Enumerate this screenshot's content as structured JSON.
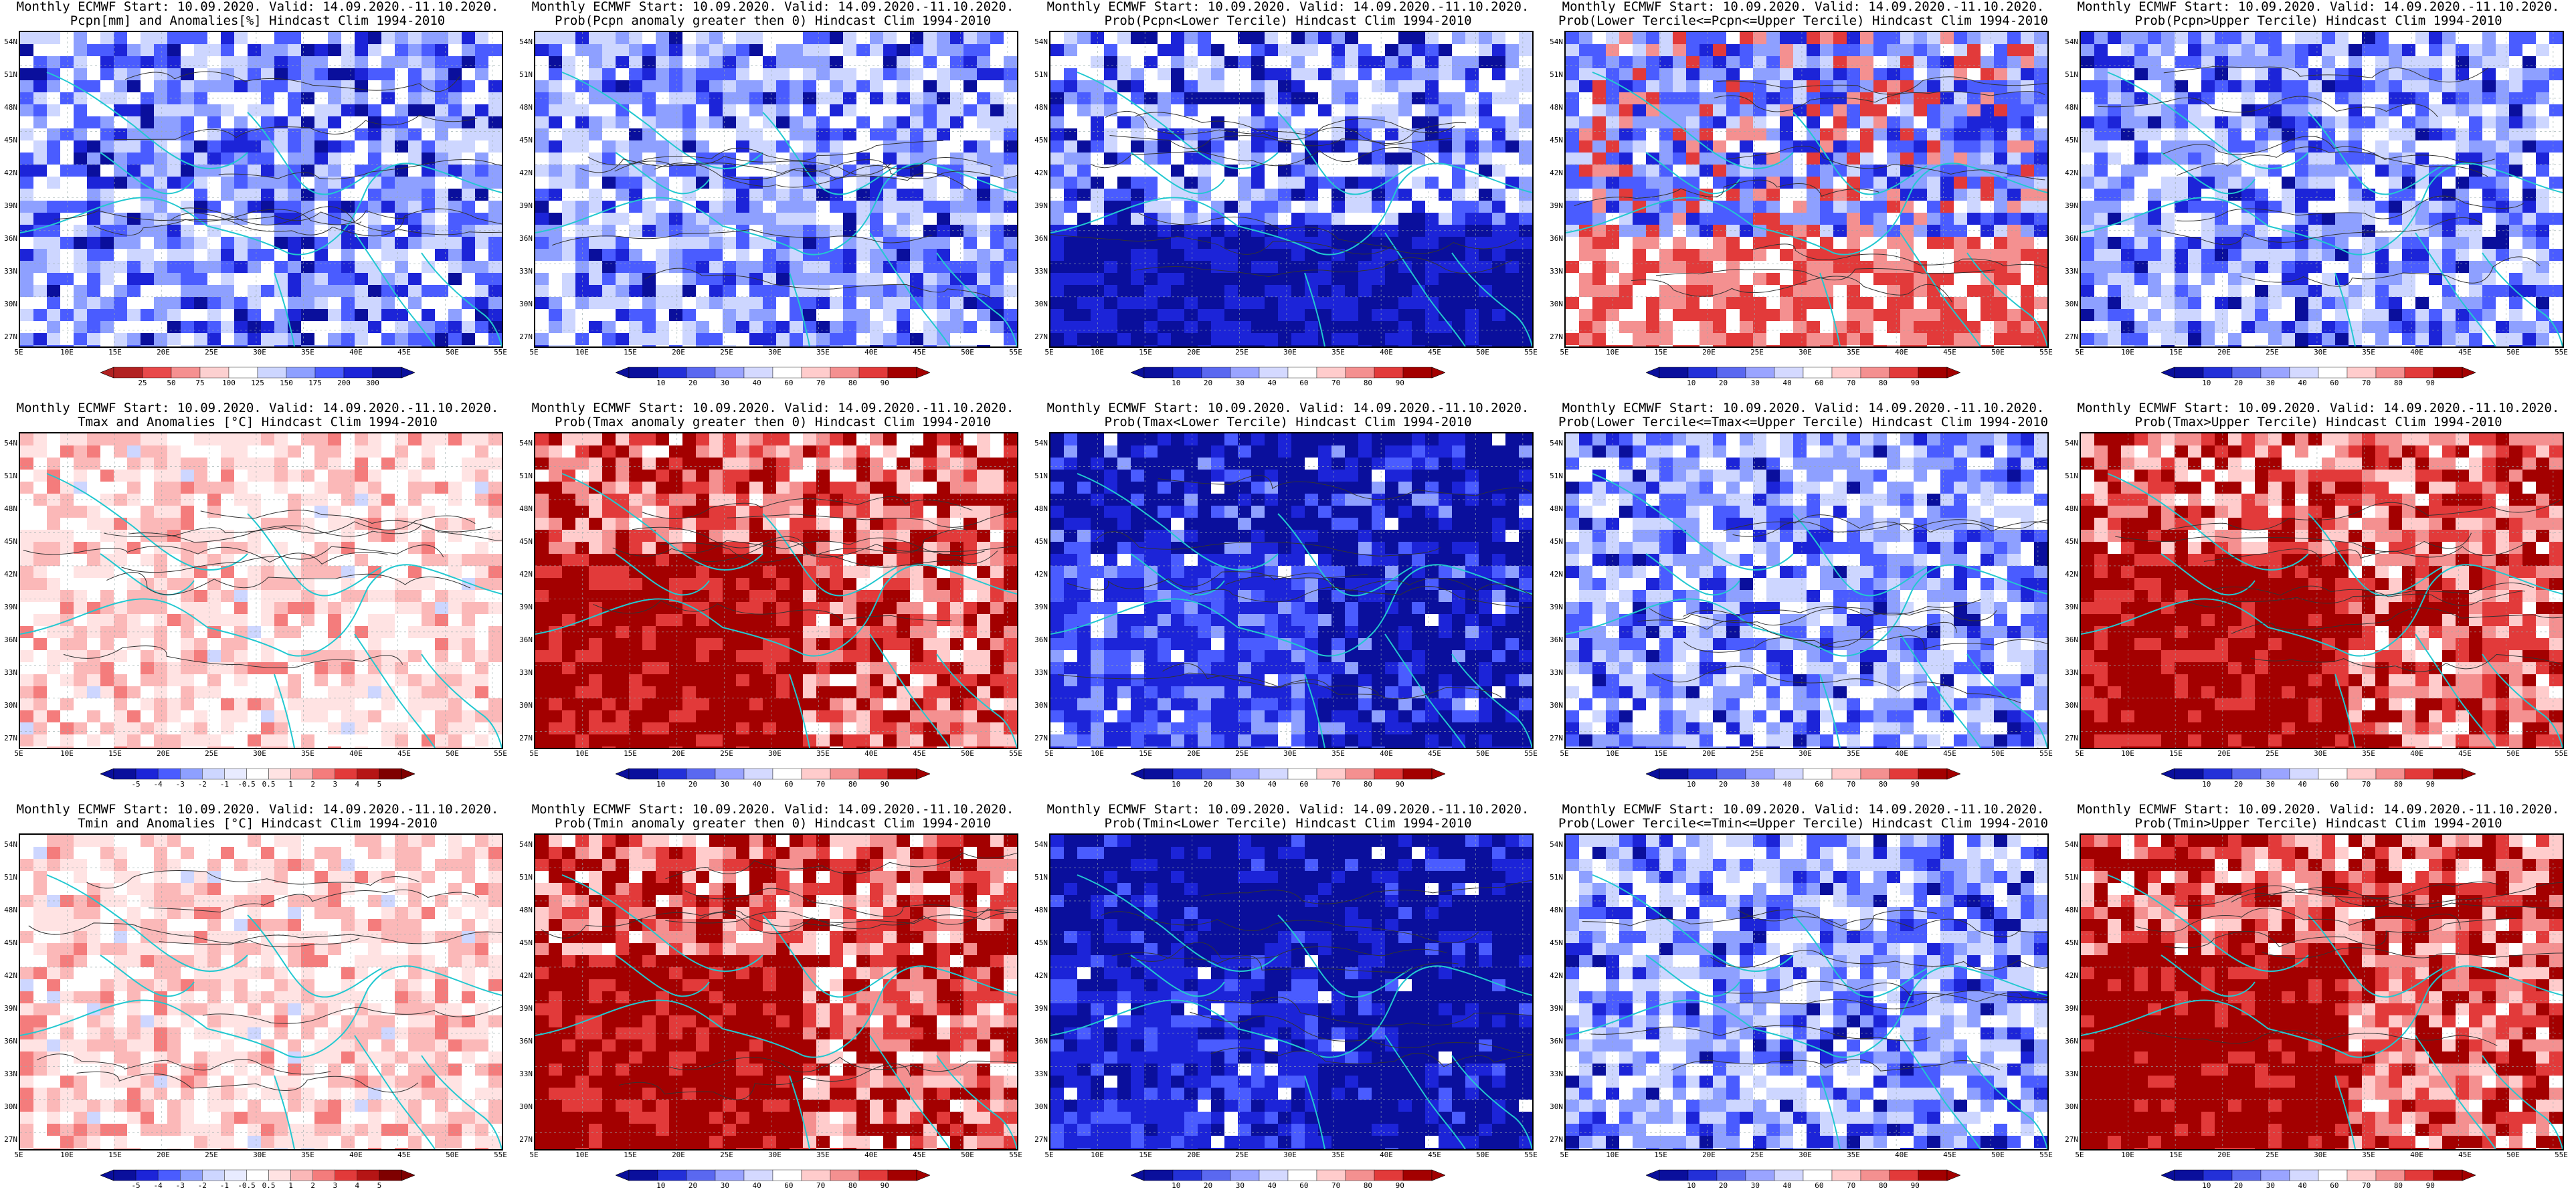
{
  "scale_pcpn": {
    "labels": [
      "25",
      "50",
      "75",
      "100",
      "125",
      "150",
      "175",
      "200",
      "300"
    ],
    "colors": [
      "#b22222",
      "#e8494a",
      "#f59090",
      "#fcd0d0",
      "#ffffff",
      "#cdd6ff",
      "#8ea0ff",
      "#4a5cff",
      "#1c24d8",
      "#0a0f9c"
    ]
  },
  "scale_prob": {
    "labels": [
      "10",
      "20",
      "30",
      "40",
      "60",
      "70",
      "80",
      "90"
    ],
    "colors": [
      "#0a0f9c",
      "#2330d8",
      "#5a68f0",
      "#9aa4ff",
      "#d4d9ff",
      "#ffffff",
      "#ffcccc",
      "#f49090",
      "#e23a3a",
      "#a30000"
    ]
  },
  "scale_anom": {
    "labels": [
      "-5",
      "-4",
      "-3",
      "-2",
      "-1",
      "-0.5",
      "0.5",
      "1",
      "2",
      "3",
      "4",
      "5"
    ],
    "colors": [
      "#0a0f9c",
      "#1c24d8",
      "#4a5cff",
      "#8ea0ff",
      "#cdd6ff",
      "#e8ebff",
      "#ffffff",
      "#ffe3e3",
      "#fbb8b8",
      "#f47c7c",
      "#e23a3a",
      "#b51515",
      "#7f0000"
    ]
  },
  "lat_ticks": [
    "54N",
    "51N",
    "48N",
    "45N",
    "42N",
    "39N",
    "36N",
    "33N",
    "30N",
    "27N"
  ],
  "lon_ticks": [
    "5E",
    "10E",
    "15E",
    "20E",
    "25E",
    "30E",
    "35E",
    "40E",
    "45E",
    "50E",
    "55E"
  ],
  "panels": [
    {
      "title1": "Monthly ECMWF Start: 10.09.2020. Valid: 14.09.2020.-11.10.2020.",
      "title2": "Pcpn[mm] and Anomalies[%] Hindcast Clim 1994-2010",
      "scale": "pcpn",
      "style": "blue-mix"
    },
    {
      "title1": "Monthly ECMWF Start: 10.09.2020. Valid: 14.09.2020.-11.10.2020.",
      "title2": "Prob(Pcpn anomaly greater then 0) Hindcast Clim 1994-2010",
      "scale": "prob",
      "style": "blue-mix"
    },
    {
      "title1": "Monthly ECMWF Start: 10.09.2020. Valid: 14.09.2020.-11.10.2020.",
      "title2": "Prob(Pcpn<Lower Tercile) Hindcast Clim 1994-2010",
      "scale": "prob",
      "style": "blue-south"
    },
    {
      "title1": "Monthly ECMWF Start: 10.09.2020. Valid: 14.09.2020.-11.10.2020.",
      "title2": "Prob(Lower Tercile<=Pcpn<=Upper Tercile) Hindcast Clim 1994-2010",
      "scale": "prob",
      "style": "red-south"
    },
    {
      "title1": "Monthly ECMWF Start: 10.09.2020. Valid: 14.09.2020.-11.10.2020.",
      "title2": "Prob(Pcpn>Upper Tercile) Hindcast Clim 1994-2010",
      "scale": "prob",
      "style": "blue-mix"
    },
    {
      "title1": "Monthly ECMWF Start: 10.09.2020. Valid: 14.09.2020.-11.10.2020.",
      "title2": "Tmax and Anomalies [°C] Hindcast Clim 1994-2010",
      "scale": "anom",
      "style": "light-red"
    },
    {
      "title1": "Monthly ECMWF Start: 10.09.2020. Valid: 14.09.2020.-11.10.2020.",
      "title2": "Prob(Tmax anomaly greater then 0) Hindcast Clim 1994-2010",
      "scale": "prob",
      "style": "red"
    },
    {
      "title1": "Monthly ECMWF Start: 10.09.2020. Valid: 14.09.2020.-11.10.2020.",
      "title2": "Prob(Tmax<Lower Tercile) Hindcast Clim 1994-2010",
      "scale": "prob",
      "style": "blue"
    },
    {
      "title1": "Monthly ECMWF Start: 10.09.2020. Valid: 14.09.2020.-11.10.2020.",
      "title2": "Prob(Lower Tercile<=Tmax<=Upper Tercile) Hindcast Clim 1994-2010",
      "scale": "prob",
      "style": "blue-mix"
    },
    {
      "title1": "Monthly ECMWF Start: 10.09.2020. Valid: 14.09.2020.-11.10.2020.",
      "title2": "Prob(Tmax>Upper Tercile) Hindcast Clim 1994-2010",
      "scale": "prob",
      "style": "red"
    },
    {
      "title1": "Monthly ECMWF Start: 10.09.2020. Valid: 14.09.2020.-11.10.2020.",
      "title2": "Tmin and Anomalies [°C] Hindcast Clim 1994-2010",
      "scale": "anom",
      "style": "light-red"
    },
    {
      "title1": "Monthly ECMWF Start: 10.09.2020. Valid: 14.09.2020.-11.10.2020.",
      "title2": "Prob(Tmin anomaly greater then 0) Hindcast Clim 1994-2010",
      "scale": "prob",
      "style": "red"
    },
    {
      "title1": "Monthly ECMWF Start: 10.09.2020. Valid: 14.09.2020.-11.10.2020.",
      "title2": "Prob(Tmin<Lower Tercile) Hindcast Clim 1994-2010",
      "scale": "prob",
      "style": "deep-blue"
    },
    {
      "title1": "Monthly ECMWF Start: 10.09.2020. Valid: 14.09.2020.-11.10.2020.",
      "title2": "Prob(Lower Tercile<=Tmin<=Upper Tercile) Hindcast Clim 1994-2010",
      "scale": "prob",
      "style": "blue-mix"
    },
    {
      "title1": "Monthly ECMWF Start: 10.09.2020. Valid: 14.09.2020.-11.10.2020.",
      "title2": "Prob(Tmin>Upper Tercile) Hindcast Clim 1994-2010",
      "scale": "prob",
      "style": "red"
    }
  ]
}
